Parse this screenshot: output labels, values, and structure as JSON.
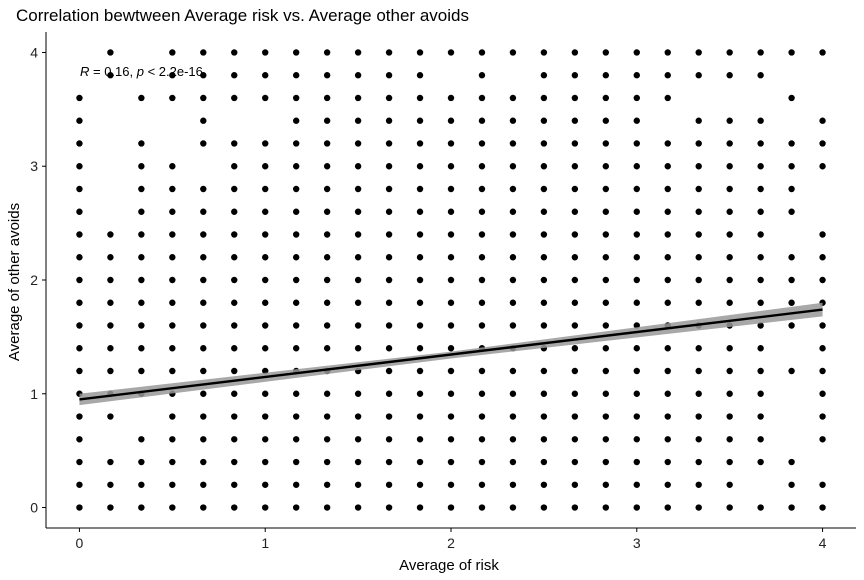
{
  "chart_data": {
    "type": "scatter",
    "title": "Correlation bewtween Average risk vs. Average other avoids",
    "xlabel": "Average of risk",
    "ylabel": "Average of other avoids",
    "xlim": [
      -0.18,
      4.18
    ],
    "ylim": [
      -0.18,
      4.18
    ],
    "x_ticks": [
      0,
      1,
      2,
      3,
      4
    ],
    "y_ticks": [
      0,
      1,
      2,
      3,
      4
    ],
    "x_grid": [
      0,
      0.1667,
      0.3333,
      0.5,
      0.6667,
      0.8333,
      1,
      1.1667,
      1.3333,
      1.5,
      1.6667,
      1.8333,
      2,
      2.1667,
      2.3333,
      2.5,
      2.6667,
      2.8333,
      3,
      3.1667,
      3.3333,
      3.5,
      3.6667,
      3.8333,
      4
    ],
    "y_grid": [
      0,
      0.2,
      0.4,
      0.6,
      0.8,
      1,
      1.2,
      1.4,
      1.6,
      1.8,
      2,
      2.2,
      2.4,
      2.6,
      2.8,
      3,
      3.2,
      3.4,
      3.6,
      3.8,
      4
    ],
    "missing_points": [
      [
        0,
        3.8
      ],
      [
        0,
        4
      ],
      [
        0.1667,
        3.6
      ],
      [
        0.1667,
        3.4
      ],
      [
        0.1667,
        3.2
      ],
      [
        0.1667,
        3
      ],
      [
        0.1667,
        2.8
      ],
      [
        0.1667,
        2.6
      ],
      [
        0.1667,
        0.6
      ],
      [
        0.3333,
        4
      ],
      [
        0.3333,
        3.8
      ],
      [
        0.3333,
        3.4
      ],
      [
        0.3333,
        0.8
      ],
      [
        0.5,
        3.4
      ],
      [
        0.5,
        3.2
      ],
      [
        0.6667,
        3
      ],
      [
        0.8333,
        3.4
      ],
      [
        1,
        3.4
      ],
      [
        2,
        3.8
      ],
      [
        2.3333,
        3.8
      ],
      [
        3.1667,
        3.4
      ],
      [
        3.3333,
        3.6
      ],
      [
        3.5,
        3.6
      ],
      [
        3.6667,
        3.6
      ],
      [
        3.6667,
        0.2
      ],
      [
        3.8333,
        3.8
      ],
      [
        3.8333,
        3.4
      ],
      [
        3.8333,
        2.4
      ],
      [
        3.8333,
        1.4
      ],
      [
        3.8333,
        1
      ],
      [
        3.8333,
        0.8
      ],
      [
        3.8333,
        0.6
      ],
      [
        4,
        3.8
      ],
      [
        4,
        3.6
      ],
      [
        4,
        2.8
      ],
      [
        4,
        2.6
      ],
      [
        4,
        0.4
      ]
    ],
    "trend_line": {
      "x": [
        0,
        4
      ],
      "y": [
        0.95,
        1.74
      ],
      "band": [
        [
          0,
          0.9,
          1.0
        ],
        [
          2,
          1.31,
          1.37
        ],
        [
          4,
          1.68,
          1.8
        ]
      ]
    },
    "annotation": {
      "r_label": "R",
      "r_text": " = 0.16, ",
      "p_label": "p",
      "p_text": " < 2.2e-16"
    },
    "colors": {
      "points": "#000000",
      "line": "#000000",
      "band": "#999999",
      "axis": "#000000"
    }
  }
}
